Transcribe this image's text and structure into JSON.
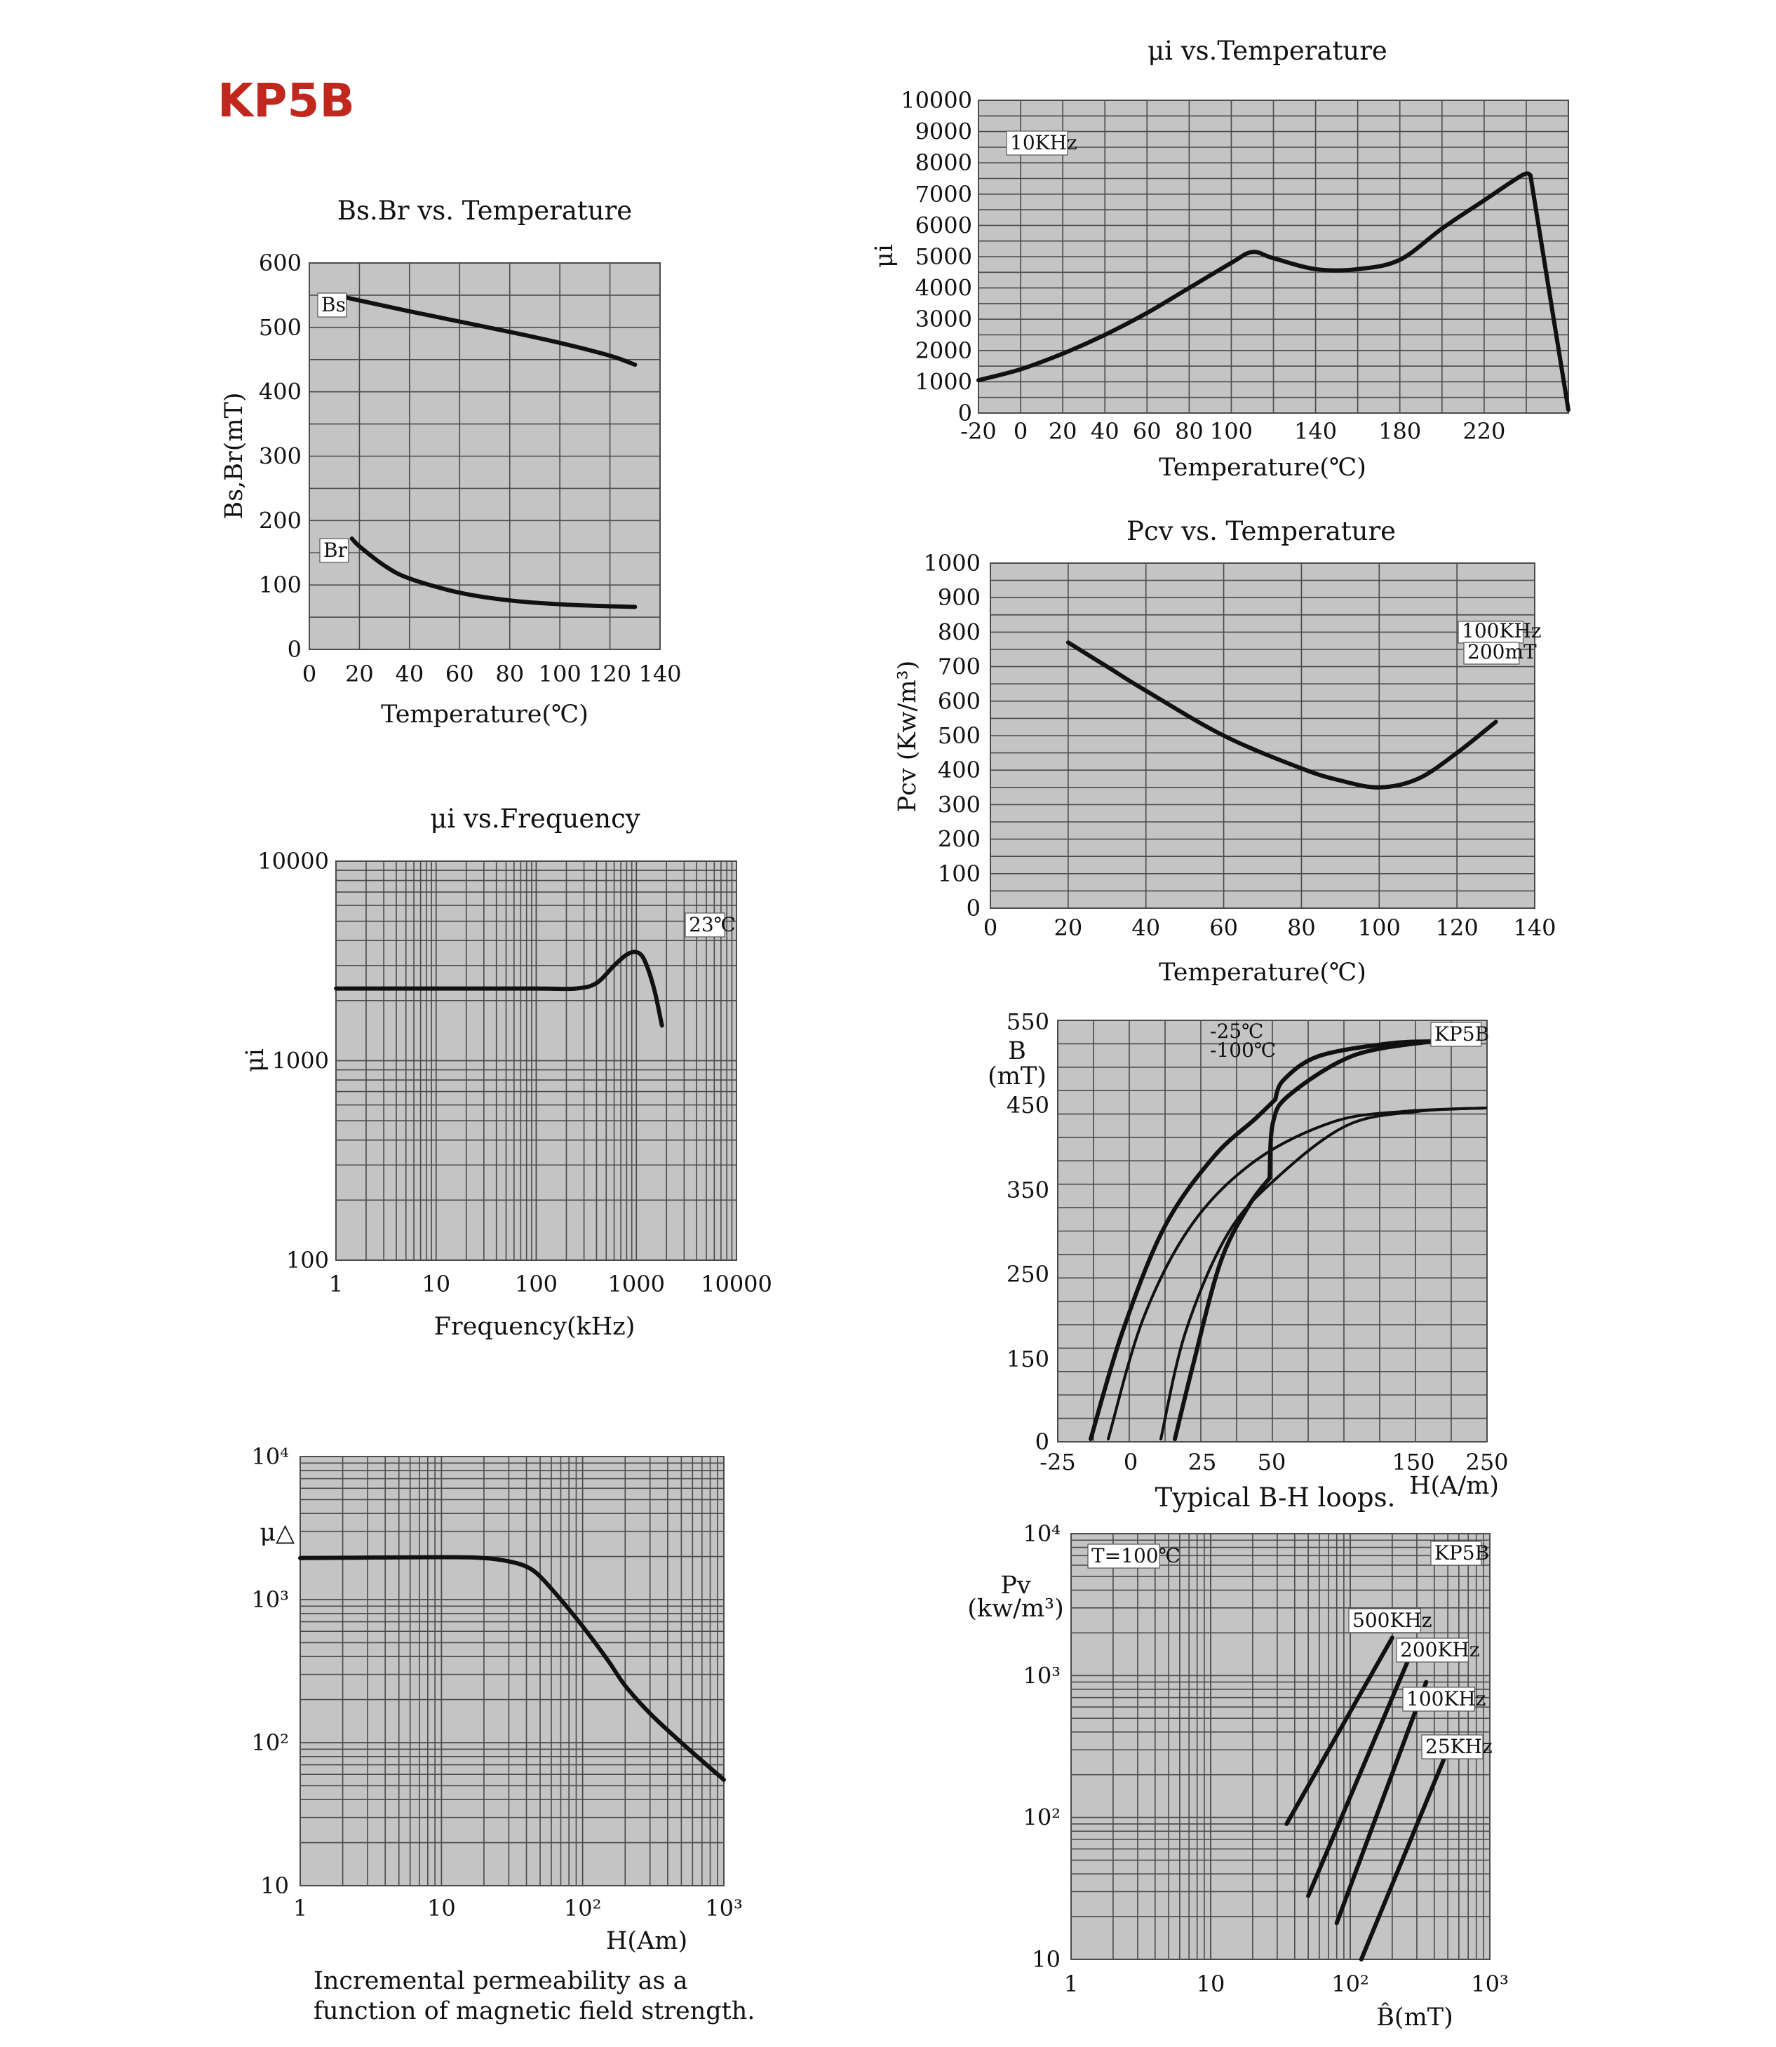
{
  "brand": "KP5B",
  "chart_data": [
    {
      "id": "bsbr",
      "type": "line",
      "title": "Bs.Br  vs. Temperature",
      "xlabel": "Temperature(℃)",
      "ylabel": "Bs,Br(mT)",
      "xlim": [
        0,
        140
      ],
      "ylim": [
        0,
        600
      ],
      "xticks": [
        "0",
        "20",
        "40",
        "60",
        "80",
        "100",
        "120",
        "140"
      ],
      "yticks": [
        "0",
        "100",
        "200",
        "300",
        "400",
        "500",
        "600"
      ],
      "series": [
        {
          "name": "Bs",
          "x": [
            15,
            40,
            60,
            80,
            100,
            120,
            130
          ],
          "y": [
            546,
            525,
            509,
            493,
            476,
            456,
            442
          ]
        },
        {
          "name": "Br",
          "x": [
            17,
            20,
            30,
            40,
            60,
            80,
            100,
            120,
            130
          ],
          "y": [
            172,
            160,
            130,
            110,
            88,
            76,
            70,
            67,
            66
          ]
        }
      ]
    },
    {
      "id": "mui_temp",
      "type": "line",
      "title": "μi  vs.Temperature",
      "xlabel": "Temperature(℃)",
      "ylabel": "μi",
      "xlim": [
        -20,
        260
      ],
      "ylim": [
        0,
        10000
      ],
      "xticks": [
        "-20",
        "0",
        "20",
        "40",
        "60",
        "80",
        "100",
        "140",
        "180",
        "220"
      ],
      "yticks": [
        "0",
        "1000",
        "2000",
        "3000",
        "4000",
        "5000",
        "6000",
        "7000",
        "8000",
        "9000",
        "10000"
      ],
      "annotation": "10KHz",
      "series": [
        {
          "x": [
            -20,
            0,
            20,
            40,
            60,
            80,
            100,
            110,
            120,
            140,
            160,
            180,
            200,
            220,
            238,
            242,
            260
          ],
          "y": [
            1050,
            1400,
            1900,
            2500,
            3200,
            4000,
            4800,
            5150,
            4950,
            4600,
            4600,
            4900,
            5900,
            6800,
            7600,
            7600,
            100
          ]
        }
      ]
    },
    {
      "id": "pcv_temp",
      "type": "line",
      "title": "Pcv vs. Temperature",
      "xlabel": "Temperature(℃)",
      "ylabel": "Pcv (Kw/m³)",
      "xlim": [
        0,
        140
      ],
      "ylim": [
        0,
        1000
      ],
      "xticks": [
        "0",
        "20",
        "40",
        "60",
        "80",
        "100",
        "120",
        "140"
      ],
      "yticks": [
        "0",
        "100",
        "200",
        "300",
        "400",
        "500",
        "600",
        "700",
        "800",
        "900",
        "1000"
      ],
      "annotation": [
        "100KHz",
        "200mT"
      ],
      "series": [
        {
          "x": [
            20,
            30,
            40,
            60,
            80,
            90,
            100,
            110,
            120,
            130
          ],
          "y": [
            770,
            700,
            630,
            500,
            405,
            370,
            350,
            375,
            450,
            540
          ]
        }
      ]
    },
    {
      "id": "mui_freq",
      "type": "line",
      "title": "μi  vs.Frequency",
      "xlabel": "Frequency(kHz)",
      "ylabel": "μi",
      "xscale": "log",
      "yscale": "log",
      "xlim": [
        1,
        10000
      ],
      "ylim": [
        100,
        10000
      ],
      "xticks": [
        "1",
        "10",
        "100",
        "1000",
        "10000"
      ],
      "yticks": [
        "100",
        "1000",
        "10000"
      ],
      "annotation": "23℃",
      "series": [
        {
          "x": [
            1,
            10,
            100,
            250,
            400,
            600,
            800,
            1000,
            1200,
            1500,
            1800
          ],
          "y": [
            2300,
            2300,
            2300,
            2300,
            2450,
            3000,
            3400,
            3500,
            3200,
            2300,
            1500
          ]
        }
      ]
    },
    {
      "id": "bh_loop",
      "type": "line",
      "title": "Typical B-H loops.",
      "xlabel": "H(A/m)",
      "ylabel": "B (mT)",
      "xticks": [
        "-25",
        "0",
        "25",
        "50",
        "150",
        "250"
      ],
      "yticks": [
        "0",
        "150",
        "250",
        "350",
        "450",
        "550"
      ],
      "legend": [
        "-25℃",
        "-100℃"
      ],
      "annotation": "KP5B"
    },
    {
      "id": "mu_delta",
      "type": "line",
      "title": "",
      "xlabel": "H(Am)",
      "ylabel": "μ△",
      "xscale": "log",
      "yscale": "log",
      "xlim": [
        1,
        1000
      ],
      "ylim": [
        10,
        10000
      ],
      "xticks": [
        "1",
        "10",
        "10²",
        "10³"
      ],
      "yticks": [
        "10",
        "10²",
        "10³",
        "10⁴"
      ],
      "caption": [
        "Incremental permeability as a",
        "function of magnetic field strength."
      ],
      "series": [
        {
          "x": [
            1,
            10,
            20,
            30,
            40,
            50,
            70,
            100,
            150,
            200,
            300,
            500,
            1000
          ],
          "y": [
            1950,
            1980,
            1950,
            1850,
            1700,
            1450,
            1000,
            650,
            380,
            250,
            160,
            100,
            55
          ]
        }
      ]
    },
    {
      "id": "pv_b",
      "type": "line",
      "title": "",
      "xlabel": "B̂(mT)",
      "ylabel": "Pv (kw/m³)",
      "xscale": "log",
      "yscale": "log",
      "xlim": [
        1,
        1000
      ],
      "ylim": [
        10,
        10000
      ],
      "xticks": [
        "1",
        "10",
        "10²",
        "10³"
      ],
      "yticks": [
        "10",
        "10²",
        "10³",
        "10⁴"
      ],
      "annotation": [
        "T=100℃",
        "KP5B"
      ],
      "series": [
        {
          "name": "500KHz",
          "x": [
            35,
            200
          ],
          "y": [
            90,
            1850
          ]
        },
        {
          "name": "200KHz",
          "x": [
            50,
            270
          ],
          "y": [
            28,
            1400
          ]
        },
        {
          "name": "100KHz",
          "x": [
            80,
            350
          ],
          "y": [
            18,
            900
          ]
        },
        {
          "name": "25KHz",
          "x": [
            120,
            500
          ],
          "y": [
            10,
            300
          ]
        }
      ]
    }
  ]
}
